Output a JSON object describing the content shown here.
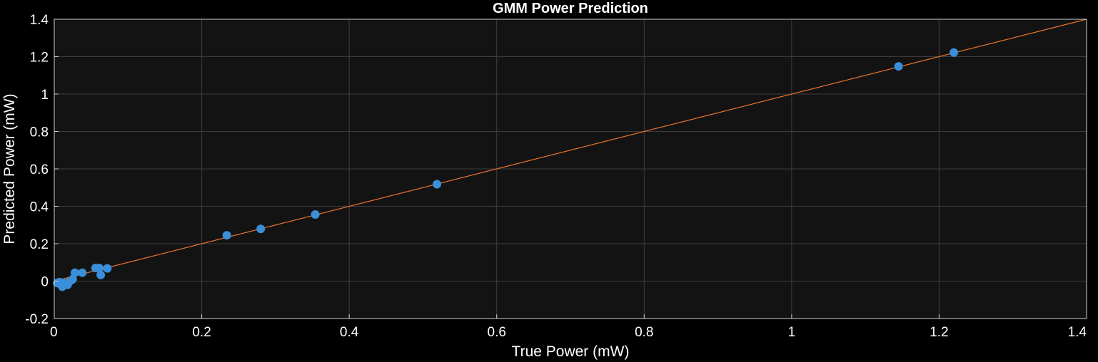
{
  "chart_data": {
    "type": "scatter",
    "title": "GMM Power Prediction",
    "xlabel": "True Power (mW)",
    "ylabel": "Predicted Power (mW)",
    "xlim": [
      0,
      1.4
    ],
    "ylim": [
      -0.2,
      1.4
    ],
    "x_ticks": [
      0,
      0.2,
      0.4,
      0.6,
      0.8,
      1,
      1.2,
      1.4
    ],
    "x_tick_labels": [
      "0",
      "0.2",
      "0.4",
      "0.6",
      "0.8",
      "1",
      "1.2",
      "1.4"
    ],
    "y_ticks": [
      -0.2,
      0,
      0.2,
      0.4,
      0.6,
      0.8,
      1,
      1.2,
      1.4
    ],
    "y_tick_labels": [
      "-0.2",
      "0",
      "0.2",
      "0.4",
      "0.6",
      "0.8",
      "1",
      "1.2",
      "1.4"
    ],
    "grid": true,
    "series": [
      {
        "type": "scatter",
        "color": "#3a8fdb",
        "points": [
          {
            "x": 0.004,
            "y": -0.01
          },
          {
            "x": 0.007,
            "y": -0.005
          },
          {
            "x": 0.009,
            "y": -0.02
          },
          {
            "x": 0.011,
            "y": -0.03
          },
          {
            "x": 0.012,
            "y": -0.01
          },
          {
            "x": 0.015,
            "y": -0.015
          },
          {
            "x": 0.018,
            "y": -0.02
          },
          {
            "x": 0.02,
            "y": -0.005
          },
          {
            "x": 0.023,
            "y": 0.005
          },
          {
            "x": 0.025,
            "y": 0.01
          },
          {
            "x": 0.028,
            "y": 0.045
          },
          {
            "x": 0.038,
            "y": 0.045
          },
          {
            "x": 0.056,
            "y": 0.07
          },
          {
            "x": 0.061,
            "y": 0.07
          },
          {
            "x": 0.063,
            "y": 0.033
          },
          {
            "x": 0.072,
            "y": 0.068
          },
          {
            "x": 0.234,
            "y": 0.245
          },
          {
            "x": 0.28,
            "y": 0.279
          },
          {
            "x": 0.354,
            "y": 0.356
          },
          {
            "x": 0.519,
            "y": 0.518
          },
          {
            "x": 1.145,
            "y": 1.148
          },
          {
            "x": 1.22,
            "y": 1.222
          }
        ]
      },
      {
        "type": "line",
        "color": "#e8732e",
        "x": [
          0,
          1.4
        ],
        "y": [
          0,
          1.4
        ]
      }
    ]
  }
}
